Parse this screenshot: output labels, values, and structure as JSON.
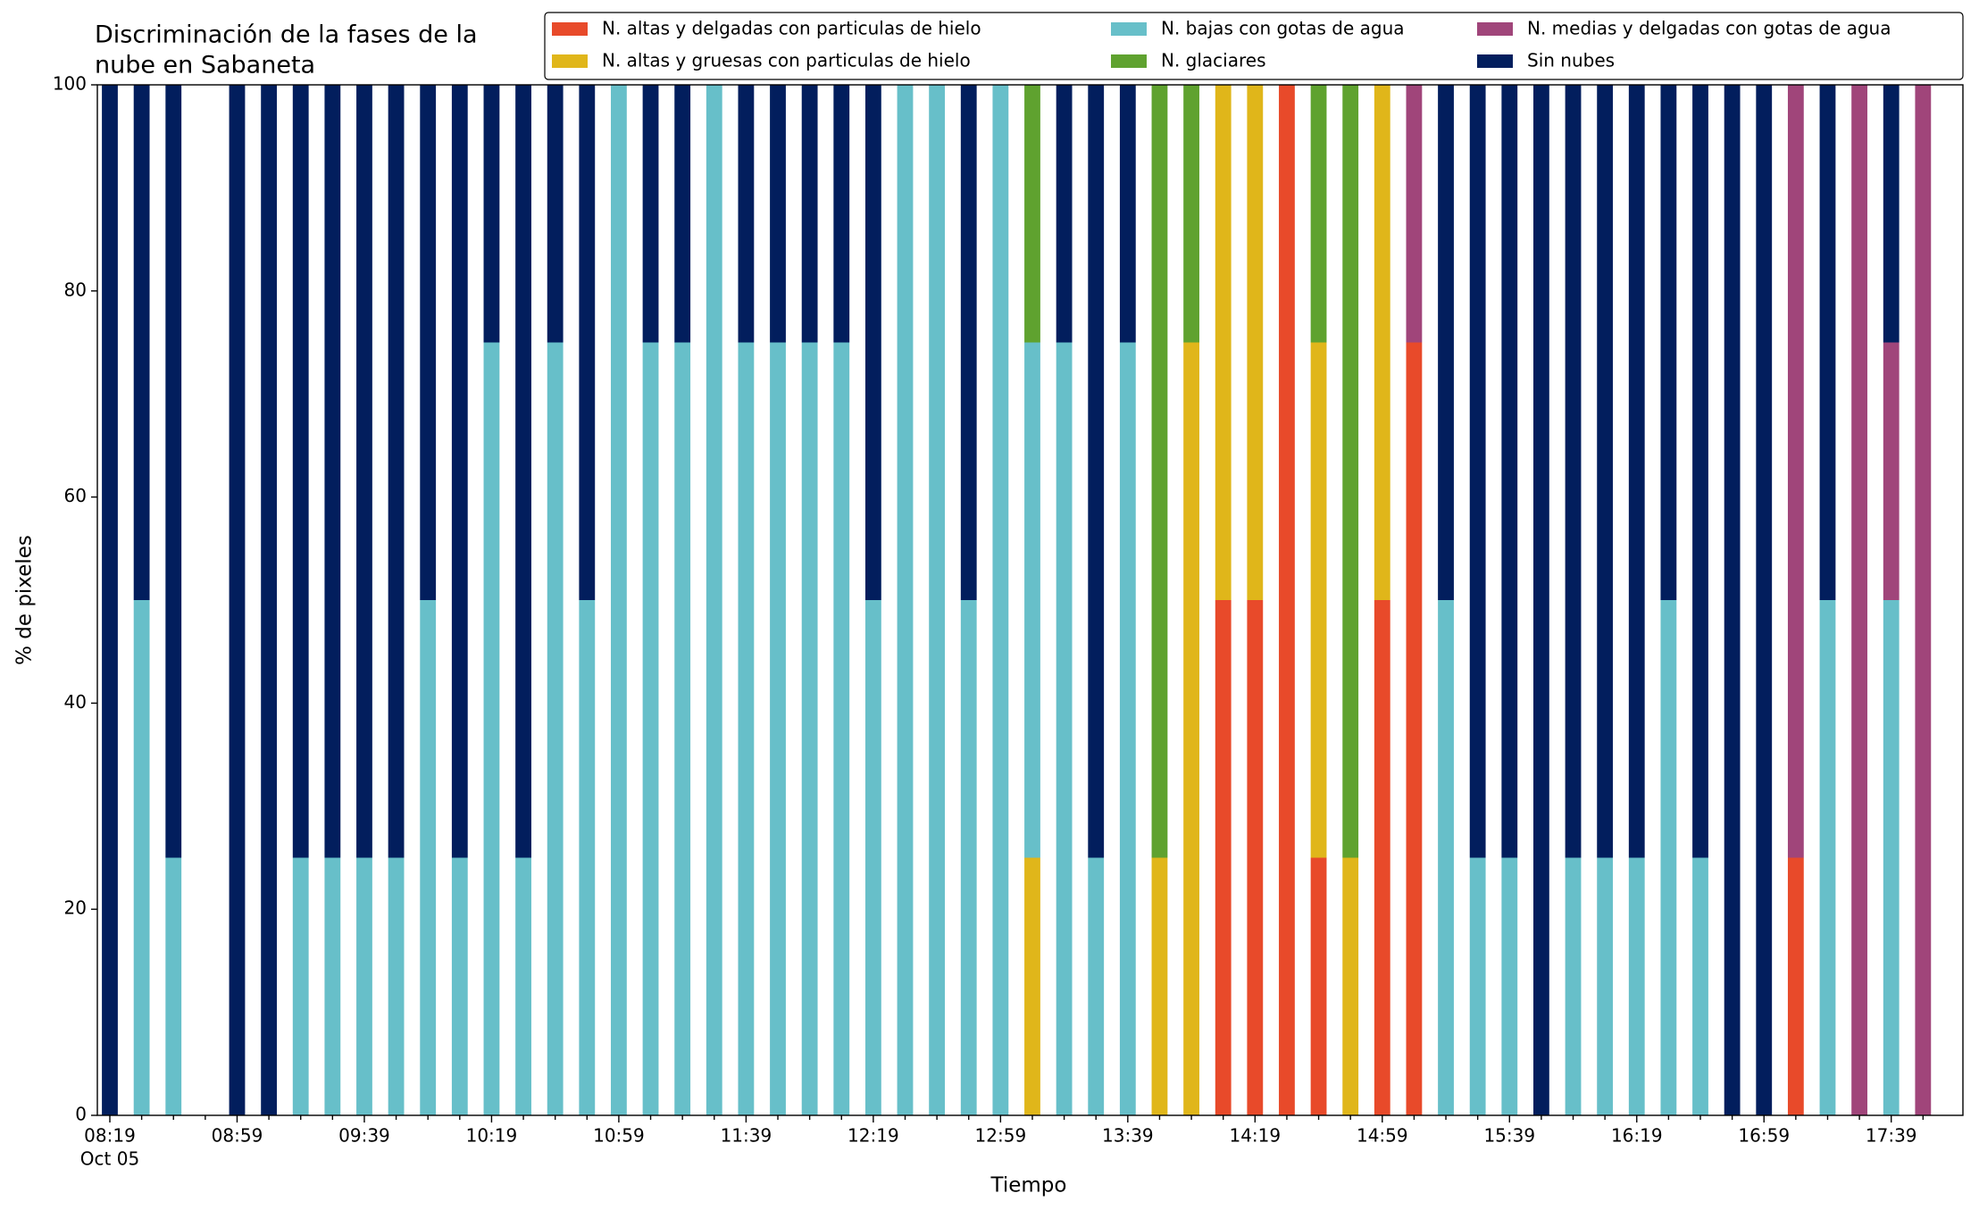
{
  "chart_data": {
    "type": "stacked_bar",
    "title": [
      "Discriminación de la fases de la",
      "nube en Sabaneta"
    ],
    "x_label": "Tiempo",
    "y_label": "% de pixeles",
    "x_date": "Oct 05",
    "categories": [
      "08:19",
      null,
      null,
      null,
      "08:59",
      null,
      null,
      null,
      "09:39",
      null,
      null,
      null,
      "10:19",
      null,
      null,
      null,
      "10:59",
      null,
      null,
      null,
      "11:39",
      null,
      null,
      null,
      "12:19",
      null,
      null,
      null,
      "12:59",
      null,
      null,
      null,
      "13:39",
      null,
      null,
      null,
      "14:19",
      null,
      null,
      null,
      "14:59",
      null,
      null,
      null,
      "15:39",
      null,
      null,
      null,
      "16:19",
      null,
      null,
      null,
      "16:59",
      null,
      null,
      null,
      "17:39",
      null
    ],
    "series": [
      {
        "name": "N. altas y delgadas con particulas de hielo",
        "color": "#e84a2a",
        "values": [
          0,
          0,
          0,
          null,
          0,
          0,
          0,
          0,
          0,
          0,
          0,
          0,
          0,
          0,
          0,
          0,
          0,
          0,
          0,
          0,
          0,
          0,
          0,
          0,
          0,
          0,
          0,
          0,
          0,
          0,
          0,
          0,
          0,
          0,
          0,
          50,
          50,
          100,
          25,
          0,
          50,
          75,
          0,
          0,
          0,
          0,
          0,
          0,
          0,
          0,
          0,
          0,
          0,
          25,
          0,
          0,
          0,
          0
        ]
      },
      {
        "name": "N. altas y gruesas con particulas de hielo",
        "color": "#e0b61a",
        "values": [
          0,
          0,
          0,
          null,
          0,
          0,
          0,
          0,
          0,
          0,
          0,
          0,
          0,
          0,
          0,
          0,
          0,
          0,
          0,
          0,
          0,
          0,
          0,
          0,
          0,
          0,
          0,
          0,
          0,
          25,
          0,
          0,
          0,
          25,
          75,
          50,
          50,
          0,
          50,
          25,
          50,
          0,
          0,
          0,
          0,
          0,
          0,
          0,
          0,
          0,
          0,
          0,
          0,
          0,
          0,
          0,
          0,
          0
        ]
      },
      {
        "name": "N. bajas con gotas de agua",
        "color": "#67bfc9",
        "values": [
          0,
          50,
          25,
          null,
          0,
          0,
          25,
          25,
          25,
          25,
          50,
          25,
          75,
          25,
          75,
          50,
          100,
          75,
          75,
          100,
          75,
          75,
          75,
          75,
          50,
          100,
          100,
          50,
          100,
          50,
          75,
          25,
          75,
          0,
          0,
          0,
          0,
          0,
          0,
          0,
          0,
          0,
          50,
          25,
          25,
          0,
          25,
          25,
          25,
          50,
          25,
          0,
          0,
          0,
          50,
          0,
          50,
          0
        ]
      },
      {
        "name": "N. glaciares",
        "color": "#5fa22f",
        "values": [
          0,
          0,
          0,
          null,
          0,
          0,
          0,
          0,
          0,
          0,
          0,
          0,
          0,
          0,
          0,
          0,
          0,
          0,
          0,
          0,
          0,
          0,
          0,
          0,
          0,
          0,
          0,
          0,
          0,
          25,
          0,
          0,
          0,
          75,
          25,
          0,
          0,
          0,
          25,
          75,
          0,
          0,
          0,
          0,
          0,
          0,
          0,
          0,
          0,
          0,
          0,
          0,
          0,
          0,
          0,
          0,
          0,
          0
        ]
      },
      {
        "name": "N. medias y delgadas con gotas de agua",
        "color": "#a0457a",
        "values": [
          0,
          0,
          0,
          null,
          0,
          0,
          0,
          0,
          0,
          0,
          0,
          0,
          0,
          0,
          0,
          0,
          0,
          0,
          0,
          0,
          0,
          0,
          0,
          0,
          0,
          0,
          0,
          0,
          0,
          0,
          0,
          0,
          0,
          0,
          0,
          0,
          0,
          0,
          0,
          0,
          0,
          25,
          0,
          0,
          0,
          0,
          0,
          0,
          0,
          0,
          0,
          0,
          0,
          75,
          0,
          100,
          25,
          100
        ]
      },
      {
        "name": "Sin nubes",
        "color": "#021e5d",
        "values": [
          100,
          50,
          75,
          null,
          100,
          100,
          75,
          75,
          75,
          75,
          50,
          75,
          25,
          75,
          25,
          50,
          0,
          25,
          25,
          0,
          25,
          25,
          25,
          25,
          50,
          0,
          0,
          50,
          0,
          0,
          25,
          75,
          25,
          0,
          0,
          0,
          0,
          0,
          0,
          0,
          0,
          0,
          50,
          75,
          75,
          100,
          75,
          75,
          75,
          50,
          75,
          100,
          100,
          0,
          50,
          0,
          25,
          0
        ]
      }
    ],
    "ylim": [
      0,
      100
    ],
    "yticks": [
      0,
      20,
      40,
      60,
      80,
      100
    ],
    "grid": false
  }
}
